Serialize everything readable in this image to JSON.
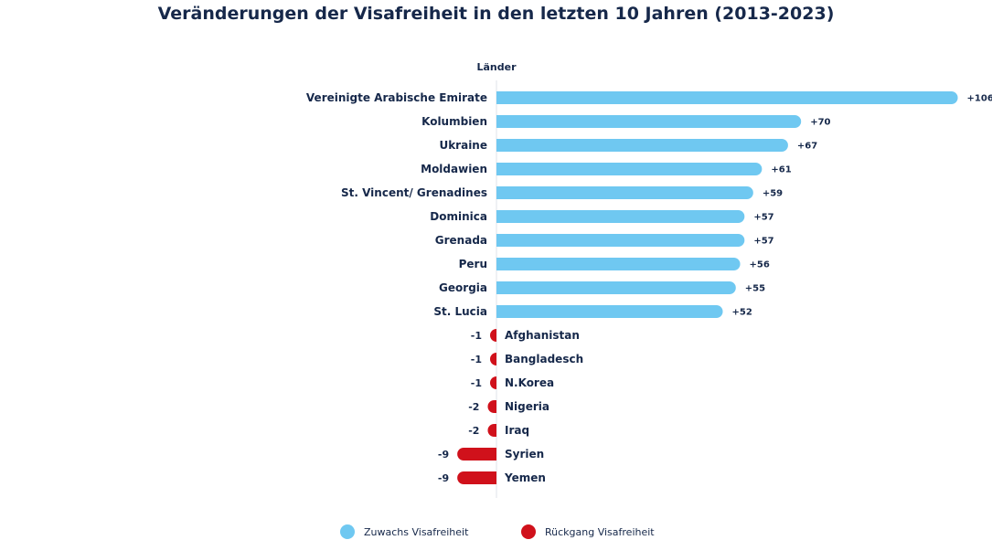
{
  "chart_data": {
    "type": "bar",
    "orientation": "horizontal",
    "title": "Veränderungen der Visafreiheit in den letzten 10 Jahren (2013-2023)",
    "category_axis_label": "Länder",
    "categories": [
      "Vereinigte Arabische Emirate",
      "Kolumbien",
      "Ukraine",
      "Moldawien",
      "St. Vincent/ Grenadines",
      "Dominica",
      "Grenada",
      "Peru",
      "Georgia",
      "St. Lucia",
      "Afghanistan",
      "Bangladesch",
      "N.Korea",
      "Nigeria",
      "Iraq",
      "Syrien",
      "Yemen"
    ],
    "values": [
      106,
      70,
      67,
      61,
      59,
      57,
      57,
      56,
      55,
      52,
      -1,
      -1,
      -1,
      -2,
      -2,
      -9,
      -9
    ],
    "data_labels": [
      "+106",
      "+70",
      "+67",
      "+61",
      "+59",
      "+57",
      "+57",
      "+56",
      "+55",
      "+52",
      "-1",
      "-1",
      "-1",
      "-2",
      "-2",
      "-9",
      "-9"
    ],
    "colors": {
      "positive": "#6fc8f1",
      "negative": "#d0111b"
    },
    "legend": {
      "placement": "bottom",
      "items": [
        {
          "label": "Zuwachs Visafreiheit",
          "color": "#6fc8f1"
        },
        {
          "label": "Rückgang Visafreiheit",
          "color": "#d0111b"
        }
      ]
    },
    "grid": false
  }
}
